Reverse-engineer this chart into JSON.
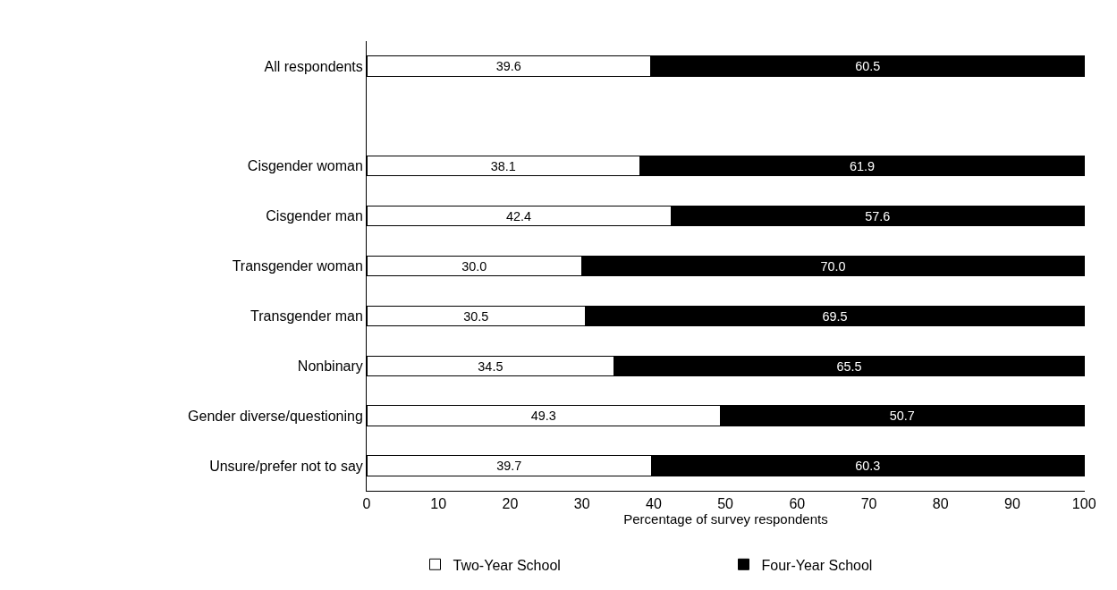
{
  "chart_data": {
    "type": "bar",
    "orientation": "horizontal",
    "stacked": true,
    "categories": [
      "All respondents",
      null,
      "Cisgender woman",
      "Cisgender man",
      "Transgender woman",
      "Transgender man",
      "Nonbinary",
      "Gender diverse/questioning",
      "Unsure/prefer not to say"
    ],
    "series": [
      {
        "name": "Two-Year School",
        "color": "#ffffff",
        "values": [
          39.6,
          null,
          38.1,
          42.4,
          30.0,
          30.5,
          34.5,
          49.3,
          39.7
        ],
        "value_labels": [
          "39.6",
          null,
          "38.1",
          "42.4",
          "30.0",
          "30.5",
          "34.5",
          "49.3",
          "39.7"
        ]
      },
      {
        "name": "Four-Year School",
        "color": "#000000",
        "values": [
          60.5,
          null,
          61.9,
          57.6,
          70.0,
          69.5,
          65.5,
          50.7,
          60.3
        ],
        "value_labels": [
          "60.5",
          null,
          "61.9",
          "57.6",
          "70.0",
          "69.5",
          "65.5",
          "50.7",
          "60.3"
        ]
      }
    ],
    "xlabel": "Percentage of survey respondents",
    "xlim": [
      0,
      100.1
    ],
    "xticks": [
      0,
      10,
      20,
      30,
      40,
      50,
      60,
      70,
      80,
      90,
      100
    ],
    "grid": false,
    "legend": "bottom"
  }
}
